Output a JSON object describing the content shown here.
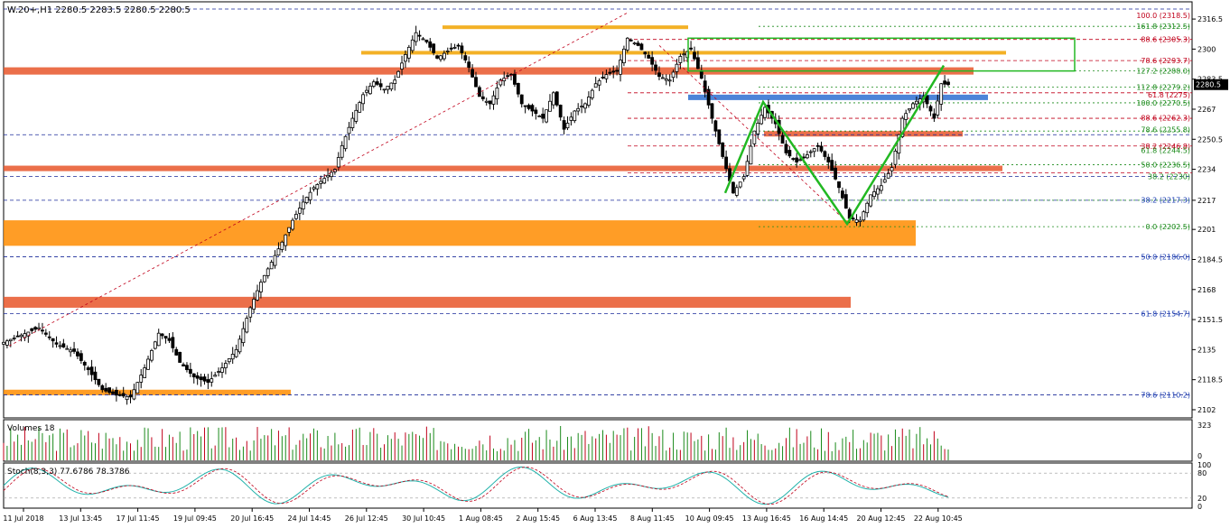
{
  "header": {
    "title": "W.20+,H1  2280.5 2283.5 2280.5 2280.5",
    "current_price": "2280.5"
  },
  "chart_data": {
    "type": "candlestick",
    "symbol": "W.20+",
    "timeframe": "H1",
    "ohlc_header": [
      2280.5,
      2283.5,
      2280.5,
      2280.5
    ],
    "y_range": [
      2100,
      2322
    ],
    "price_ticks": [
      "2316.5",
      "2300",
      "2283.5",
      "2267",
      "2250.5",
      "2234",
      "2217",
      "2201",
      "2184.5",
      "2168",
      "2151.5",
      "2135",
      "2118.5",
      "2102"
    ],
    "x_ticks": [
      "11 Jul 2018",
      "13 Jul 13:45",
      "17 Jul 11:45",
      "19 Jul 09:45",
      "20 Jul 16:45",
      "24 Jul 14:45",
      "26 Jul 12:45",
      "30 Jul 10:45",
      "1 Aug 08:45",
      "2 Aug 15:45",
      "6 Aug 13:45",
      "8 Aug 11:45",
      "10 Aug 09:45",
      "13 Aug 16:45",
      "16 Aug 14:45",
      "20 Aug 12:45",
      "22 Aug 10:45"
    ],
    "close_path": [
      [
        0,
        2139
      ],
      [
        5,
        2143
      ],
      [
        10,
        2147
      ],
      [
        15,
        2138
      ],
      [
        20,
        2134
      ],
      [
        24,
        2124
      ],
      [
        28,
        2113
      ],
      [
        32,
        2110
      ],
      [
        36,
        2109
      ],
      [
        40,
        2125
      ],
      [
        44,
        2144
      ],
      [
        47,
        2140
      ],
      [
        50,
        2128
      ],
      [
        54,
        2120
      ],
      [
        58,
        2117
      ],
      [
        62,
        2125
      ],
      [
        66,
        2135
      ],
      [
        70,
        2158
      ],
      [
        73,
        2172
      ],
      [
        76,
        2183
      ],
      [
        79,
        2194
      ],
      [
        82,
        2206
      ],
      [
        85,
        2216
      ],
      [
        88,
        2224
      ],
      [
        91,
        2229
      ],
      [
        94,
        2234
      ],
      [
        96,
        2247
      ],
      [
        99,
        2262
      ],
      [
        102,
        2275
      ],
      [
        105,
        2282
      ],
      [
        108,
        2278
      ],
      [
        111,
        2283
      ],
      [
        114,
        2297
      ],
      [
        117,
        2309
      ],
      [
        120,
        2304
      ],
      [
        123,
        2295
      ],
      [
        126,
        2299
      ],
      [
        129,
        2302
      ],
      [
        132,
        2290
      ],
      [
        135,
        2274
      ],
      [
        138,
        2270
      ],
      [
        141,
        2283
      ],
      [
        144,
        2286
      ],
      [
        147,
        2270
      ],
      [
        150,
        2266
      ],
      [
        153,
        2262
      ],
      [
        156,
        2276
      ],
      [
        159,
        2256
      ],
      [
        162,
        2266
      ],
      [
        165,
        2270
      ],
      [
        168,
        2281
      ],
      [
        171,
        2286
      ],
      [
        174,
        2288
      ],
      [
        177,
        2306
      ],
      [
        180,
        2302
      ],
      [
        183,
        2295
      ],
      [
        186,
        2285
      ],
      [
        189,
        2283
      ],
      [
        192,
        2296
      ],
      [
        195,
        2300
      ],
      [
        198,
        2284
      ],
      [
        201,
        2262
      ],
      [
        204,
        2241
      ],
      [
        207,
        2221
      ],
      [
        210,
        2230
      ],
      [
        213,
        2255
      ],
      [
        216,
        2268
      ],
      [
        219,
        2259
      ],
      [
        222,
        2243
      ],
      [
        225,
        2238
      ],
      [
        228,
        2242
      ],
      [
        231,
        2247
      ],
      [
        234,
        2238
      ],
      [
        237,
        2224
      ],
      [
        240,
        2207
      ],
      [
        243,
        2206
      ],
      [
        246,
        2220
      ],
      [
        249,
        2225
      ],
      [
        252,
        2235
      ],
      [
        255,
        2262
      ],
      [
        258,
        2270
      ],
      [
        261,
        2274
      ],
      [
        264,
        2262
      ],
      [
        266,
        2281
      ],
      [
        268,
        2280.5
      ]
    ],
    "lines": {
      "brown_dashed": [
        2322,
        2253,
        2230,
        2217,
        2186,
        2154.7,
        2110.2
      ],
      "red_dashed": [
        2305.3,
        2293.7,
        2276,
        2262,
        2246.8,
        2232
      ],
      "green_dotted": [
        2312.5,
        2288,
        2279.2,
        2270.5,
        2255,
        2236.5,
        2217,
        2202.5
      ],
      "zones": [
        {
          "from": 2286,
          "to": 2290,
          "color": "#e8562a"
        },
        {
          "from": 2233,
          "to": 2236,
          "color": "#e8562a"
        },
        {
          "from": 2192,
          "to": 2206,
          "color": "#ff8c00"
        },
        {
          "from": 2158,
          "to": 2164,
          "color": "#e8562a"
        },
        {
          "from": 2110,
          "to": 2113,
          "color": "#ff8c00"
        },
        {
          "from": 2311,
          "to": 2313,
          "color": "#f1a300"
        },
        {
          "from": 2297,
          "to": 2299,
          "color": "#f1a300"
        },
        {
          "from": 2252,
          "to": 2255,
          "color": "#e8562a"
        },
        {
          "from": 2272,
          "to": 2275,
          "color": "#2d6fd1"
        }
      ]
    },
    "fib_labels": [
      {
        "text": "100.0 (2318.5)",
        "value": 2318.5,
        "color": "#c0001a"
      },
      {
        "text": "161.8 (2312.5)",
        "value": 2312.5,
        "color": "#1a8a1a"
      },
      {
        "text": "88.6 (2305.3)",
        "value": 2305.3,
        "color": "#c0001a"
      },
      {
        "text": "78.6 (2293.7)",
        "value": 2293.7,
        "color": "#c0001a"
      },
      {
        "text": "127.2 (2288.0)",
        "value": 2288,
        "color": "#1a8a1a"
      },
      {
        "text": "112.8 (2279.2)",
        "value": 2279.2,
        "color": "#1a8a1a"
      },
      {
        "text": "61.8 (2275)",
        "value": 2275,
        "color": "#c0001a"
      },
      {
        "text": "100.0 (2270.5)",
        "value": 2270.5,
        "color": "#1a8a1a"
      },
      {
        "text": "88.6 (2262.3)",
        "value": 2262.3,
        "color": "#c0001a"
      },
      {
        "text": "78.6 (2255.8)",
        "value": 2255.8,
        "color": "#1a8a1a"
      },
      {
        "text": "38.2 (2246.8)",
        "value": 2246.8,
        "color": "#c0001a"
      },
      {
        "text": "61.8 (2244.5)",
        "value": 2244.5,
        "color": "#1a8a1a"
      },
      {
        "text": "50.0 (2236.5)",
        "value": 2236.5,
        "color": "#1a8a1a"
      },
      {
        "text": "38.2 (2230)",
        "value": 2230,
        "color": "#1a8a1a"
      },
      {
        "text": "38.2 (2217.3)",
        "value": 2217.3,
        "color": "#1a3eb3"
      },
      {
        "text": "0.0 (2202.5)",
        "value": 2202.5,
        "color": "#1a8a1a"
      },
      {
        "text": "50.0 (2186.0)",
        "value": 2186,
        "color": "#1a3eb3"
      },
      {
        "text": "61.8 (2154.7)",
        "value": 2154.7,
        "color": "#1a3eb3"
      },
      {
        "text": "78.6 (2110.2)",
        "value": 2110.2,
        "color": "#1a3eb3"
      }
    ],
    "volume_label": "Volumes 18",
    "volume_ticks": [
      "323",
      "0"
    ],
    "stoch_label": "Stoch(8,3,3) 77.6786 78.3786",
    "stoch_ticks": [
      "100",
      "80",
      "20",
      "0"
    ],
    "stoch_values": [
      77.6786,
      78.3786
    ]
  }
}
